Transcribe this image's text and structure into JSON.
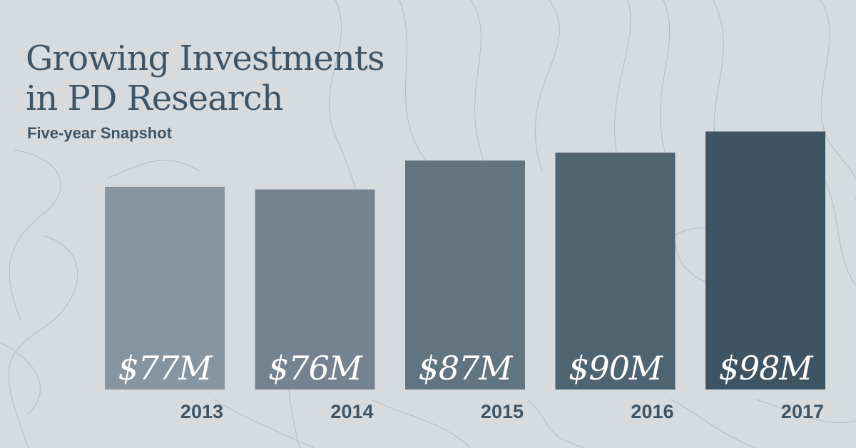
{
  "header": {
    "title_line1": "Growing Investments",
    "title_line2": "in PD Research",
    "subtitle": "Five-year Snapshot"
  },
  "chart_data": {
    "type": "bar",
    "title": "Growing Investments in PD Research",
    "subtitle": "Five-year Snapshot",
    "categories": [
      "2013",
      "2014",
      "2015",
      "2016",
      "2017"
    ],
    "values": [
      77,
      76,
      87,
      90,
      98
    ],
    "value_labels": [
      "$77M",
      "$76M",
      "$87M",
      "$90M",
      "$98M"
    ],
    "unit": "$M",
    "xlabel": "",
    "ylabel": "",
    "grid": false,
    "bar_colors": [
      "#8795a0",
      "#74838f",
      "#627480",
      "#4f6471",
      "#3e5463"
    ]
  }
}
